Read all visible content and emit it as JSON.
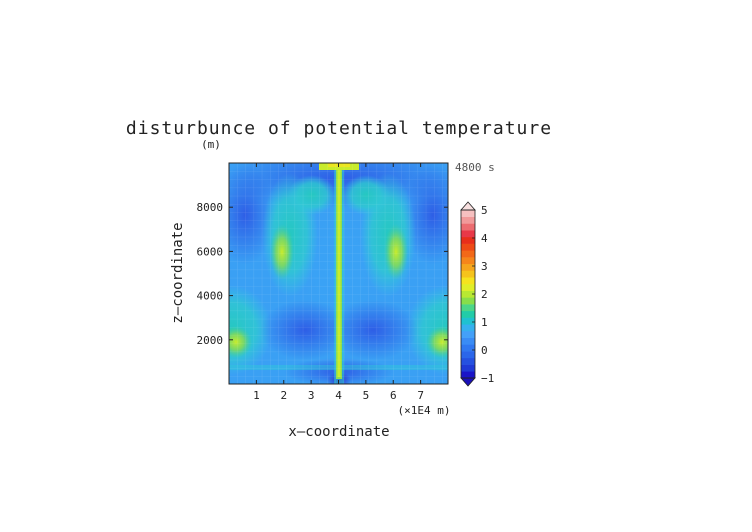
{
  "chart_data": {
    "type": "heatmap",
    "title": "disturbunce of potential temperature",
    "time_label": "4800 s",
    "ylabel": "z—coordinate",
    "y_unit": "(m)",
    "xlabel": "x—coordinate",
    "x_unit": "(×1E4 m)",
    "xlim": [
      0,
      8
    ],
    "ylim": [
      0,
      10000
    ],
    "x_ticks": [
      "1",
      "2",
      "3",
      "4",
      "5",
      "6",
      "7"
    ],
    "y_ticks": [
      "2000",
      "4000",
      "6000",
      "8000"
    ],
    "colorbar": {
      "range": [
        -1,
        5
      ],
      "tick_labels": [
        "−1",
        "0",
        "1",
        "2",
        "3",
        "4",
        "5"
      ],
      "extend": "both",
      "levels": 24,
      "colors": [
        "#1a14c8",
        "#1f3ad6",
        "#2551e0",
        "#2b66ea",
        "#3078f0",
        "#3a8cf5",
        "#44a0f8",
        "#36b0ee",
        "#1fc1d0",
        "#22cca8",
        "#4cd688",
        "#88de4a",
        "#b8e832",
        "#e0ee28",
        "#f5e31e",
        "#f5c31c",
        "#f5a51c",
        "#f5851a",
        "#f26818",
        "#ee4a16",
        "#e82e1a",
        "#e83848",
        "#ec6c70",
        "#f19a9a",
        "#f6c0c0"
      ]
    }
  }
}
